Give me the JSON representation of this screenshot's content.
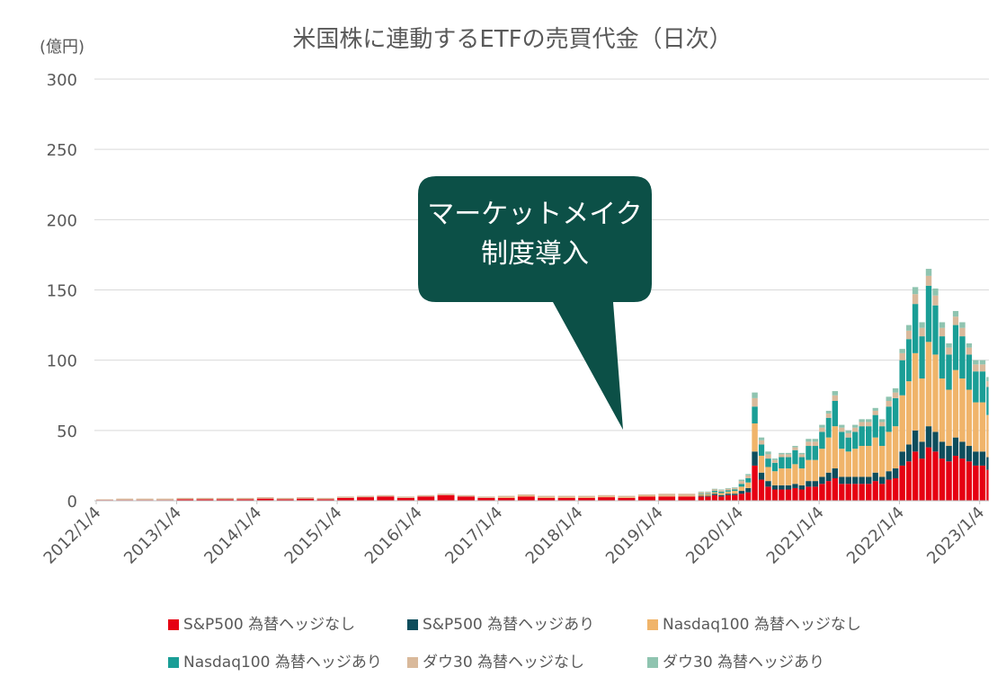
{
  "chart_data": {
    "type": "stacked-bar",
    "title": "米国株に連動するETFの売買代金（日次）",
    "y_label": "(億円)",
    "annotation": [
      "マーケットメイク",
      "制度導入"
    ],
    "x": [
      "2012/1/4",
      "2012/4/4",
      "2012/7/4",
      "2012/10/4",
      "2013/1/4",
      "2013/4/4",
      "2013/7/4",
      "2013/10/4",
      "2014/1/4",
      "2014/4/4",
      "2014/7/4",
      "2014/10/4",
      "2015/1/4",
      "2015/4/4",
      "2015/7/4",
      "2015/10/4",
      "2016/1/4",
      "2016/4/4",
      "2016/7/4",
      "2016/10/4",
      "2017/1/4",
      "2017/4/4",
      "2017/7/4",
      "2017/10/4",
      "2018/1/4",
      "2018/4/4",
      "2018/7/4",
      "2018/10/4",
      "2019/1/4",
      "2019/4/4",
      "2019/7/4",
      "2019/8/4",
      "2019/9/4",
      "2019/10/4",
      "2019/11/4",
      "2019/12/4",
      "2020/1/4",
      "2020/2/4",
      "2020/3/4",
      "2020/4/4",
      "2020/5/4",
      "2020/6/4",
      "2020/7/4",
      "2020/8/4",
      "2020/9/4",
      "2020/10/4",
      "2020/11/4",
      "2020/12/4",
      "2021/1/4",
      "2021/2/4",
      "2021/3/4",
      "2021/4/4",
      "2021/5/4",
      "2021/6/4",
      "2021/7/4",
      "2021/8/4",
      "2021/9/4",
      "2021/10/4",
      "2021/11/4",
      "2021/12/4",
      "2022/1/4",
      "2022/2/4",
      "2022/3/4",
      "2022/4/4",
      "2022/5/4",
      "2022/6/4",
      "2022/7/4",
      "2022/8/4",
      "2022/9/4",
      "2022/10/4",
      "2022/11/4",
      "2022/12/4",
      "2023/1/4",
      "2023/2/4"
    ],
    "series": [
      {
        "name": "S&P500 為替ヘッジなし",
        "color": "#e60012",
        "values": [
          0.5,
          0.5,
          0.5,
          0.5,
          1,
          1,
          1,
          1,
          1.5,
          1,
          1.5,
          1,
          2,
          2.5,
          3,
          2,
          3,
          4,
          3,
          2,
          2,
          3,
          2,
          2,
          2,
          2.5,
          2,
          3,
          3,
          3,
          3,
          3,
          4,
          3,
          4,
          4,
          5,
          6,
          25,
          15,
          10,
          8,
          8,
          8,
          9,
          8,
          10,
          10,
          12,
          14,
          16,
          12,
          12,
          12,
          12,
          12,
          14,
          12,
          15,
          16,
          25,
          28,
          35,
          30,
          38,
          35,
          30,
          28,
          32,
          30,
          28,
          25,
          25,
          22
        ]
      },
      {
        "name": "S&P500 為替ヘッジあり",
        "color": "#0e4d5c",
        "values": [
          0,
          0,
          0,
          0,
          0,
          0,
          0,
          0,
          0,
          0,
          0,
          0,
          0,
          0,
          0,
          0,
          0,
          0,
          0,
          0,
          0,
          0,
          0,
          0,
          0,
          0,
          0,
          0,
          0,
          0,
          0.5,
          0.5,
          1,
          1,
          1,
          1,
          2,
          3,
          10,
          5,
          4,
          3,
          3,
          3,
          3,
          3,
          4,
          4,
          5,
          6,
          7,
          5,
          5,
          5,
          5,
          5,
          6,
          5,
          6,
          7,
          10,
          12,
          15,
          12,
          15,
          14,
          12,
          11,
          13,
          12,
          11,
          10,
          10,
          9
        ]
      },
      {
        "name": "Nasdaq100 為替ヘッジなし",
        "color": "#f0b46a",
        "values": [
          0,
          0,
          0,
          0,
          0,
          0,
          0,
          0,
          0,
          0,
          0,
          0,
          0,
          0,
          0,
          0,
          0,
          0,
          0,
          0,
          0.5,
          0.5,
          0.5,
          0.5,
          0.5,
          0.5,
          0.5,
          0.5,
          0.5,
          0.5,
          1,
          1,
          1,
          1.5,
          1.5,
          2,
          3,
          4,
          20,
          12,
          10,
          10,
          12,
          12,
          14,
          12,
          15,
          15,
          20,
          25,
          30,
          20,
          18,
          20,
          22,
          22,
          25,
          22,
          28,
          30,
          40,
          45,
          55,
          45,
          60,
          55,
          45,
          40,
          48,
          45,
          40,
          35,
          35,
          30
        ]
      },
      {
        "name": "Nasdaq100 為替ヘッジあり",
        "color": "#1a9e96",
        "values": [
          0,
          0,
          0,
          0,
          0,
          0,
          0,
          0,
          0,
          0,
          0,
          0,
          0,
          0,
          0,
          0,
          0,
          0,
          0,
          0,
          0,
          0,
          0,
          0,
          0,
          0,
          0,
          0,
          0,
          0,
          0.5,
          0.5,
          1,
          1,
          1,
          1,
          2,
          3,
          12,
          8,
          6,
          6,
          8,
          8,
          10,
          8,
          10,
          10,
          12,
          14,
          18,
          12,
          10,
          12,
          14,
          14,
          16,
          14,
          18,
          20,
          25,
          30,
          35,
          30,
          40,
          35,
          30,
          25,
          32,
          30,
          25,
          22,
          22,
          20
        ]
      },
      {
        "name": "ダウ30 為替ヘッジなし",
        "color": "#d9b99b",
        "values": [
          0.5,
          1,
          1,
          1,
          1,
          1,
          1,
          1,
          1,
          1,
          1,
          1,
          1,
          1,
          1,
          1,
          1,
          1,
          1,
          1,
          1,
          1,
          1,
          1,
          1,
          1,
          1,
          1,
          1.5,
          1.5,
          1,
          1,
          1,
          1,
          1,
          1,
          2,
          2,
          6,
          3,
          3,
          2,
          2,
          2,
          2,
          2,
          3,
          3,
          3,
          3,
          4,
          3,
          3,
          3,
          3,
          3,
          3,
          3,
          4,
          4,
          5,
          6,
          7,
          6,
          7,
          7,
          6,
          5,
          6,
          6,
          5,
          5,
          5,
          4
        ]
      },
      {
        "name": "ダウ30 為替ヘッジあり",
        "color": "#8fc4b0",
        "values": [
          0,
          0,
          0,
          0,
          0,
          0,
          0,
          0,
          0,
          0,
          0,
          0,
          0,
          0,
          0,
          0,
          0,
          0,
          0,
          0,
          0,
          0,
          0,
          0,
          0,
          0,
          0,
          0,
          0,
          0,
          0.5,
          0.5,
          0.5,
          0.5,
          0.5,
          0.5,
          1,
          1,
          4,
          2,
          2,
          1,
          1,
          1,
          1,
          1,
          2,
          2,
          2,
          2,
          3,
          2,
          2,
          2,
          2,
          2,
          2,
          2,
          3,
          3,
          3,
          4,
          5,
          4,
          5,
          5,
          4,
          3,
          4,
          4,
          3,
          3,
          3,
          3
        ]
      }
    ],
    "xlim": [
      "2012/1/4",
      "2023/2/15"
    ],
    "xticks": [
      "2012/1/4",
      "2013/1/4",
      "2014/1/4",
      "2015/1/4",
      "2016/1/4",
      "2017/1/4",
      "2018/1/4",
      "2019/1/4",
      "2020/1/4",
      "2021/1/4",
      "2022/1/4",
      "2023/1/4"
    ],
    "ylim": [
      0,
      300
    ],
    "yticks": [
      0,
      50,
      100,
      150,
      200,
      250,
      300
    ],
    "grid": true
  }
}
